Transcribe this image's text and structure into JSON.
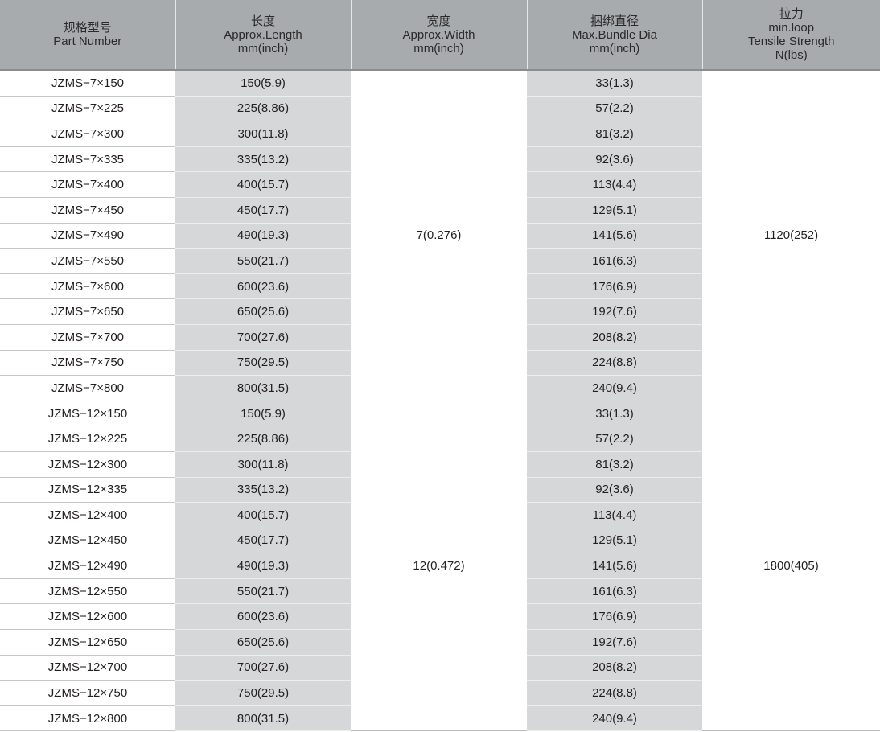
{
  "headers": [
    {
      "cn": "规格型号",
      "en": [
        "Part Number"
      ]
    },
    {
      "cn": "长度",
      "en": [
        "Approx.Length",
        "mm(inch)"
      ]
    },
    {
      "cn": "宽度",
      "en": [
        "Approx.Width",
        "mm(inch)"
      ]
    },
    {
      "cn": "捆绑直径",
      "en": [
        "Max.Bundle Dia",
        "mm(inch)"
      ]
    },
    {
      "cn": "拉力",
      "en": [
        "min.loop",
        "Tensile Strength",
        "N(lbs)"
      ]
    }
  ],
  "groups": [
    {
      "width": "7(0.276)",
      "tensile": "1120(252)",
      "rows": [
        [
          "JZMS−7×150",
          "150(5.9)",
          "33(1.3)"
        ],
        [
          "JZMS−7×225",
          "225(8.86)",
          "57(2.2)"
        ],
        [
          "JZMS−7×300",
          "300(11.8)",
          "81(3.2)"
        ],
        [
          "JZMS−7×335",
          "335(13.2)",
          "92(3.6)"
        ],
        [
          "JZMS−7×400",
          "400(15.7)",
          "113(4.4)"
        ],
        [
          "JZMS−7×450",
          "450(17.7)",
          "129(5.1)"
        ],
        [
          "JZMS−7×490",
          "490(19.3)",
          "141(5.6)"
        ],
        [
          "JZMS−7×550",
          "550(21.7)",
          "161(6.3)"
        ],
        [
          "JZMS−7×600",
          "600(23.6)",
          "176(6.9)"
        ],
        [
          "JZMS−7×650",
          "650(25.6)",
          "192(7.6)"
        ],
        [
          "JZMS−7×700",
          "700(27.6)",
          "208(8.2)"
        ],
        [
          "JZMS−7×750",
          "750(29.5)",
          "224(8.8)"
        ],
        [
          "JZMS−7×800",
          "800(31.5)",
          "240(9.4)"
        ]
      ]
    },
    {
      "width": "12(0.472)",
      "tensile": "1800(405)",
      "rows": [
        [
          "JZMS−12×150",
          "150(5.9)",
          "33(1.3)"
        ],
        [
          "JZMS−12×225",
          "225(8.86)",
          "57(2.2)"
        ],
        [
          "JZMS−12×300",
          "300(11.8)",
          "81(3.2)"
        ],
        [
          "JZMS−12×335",
          "335(13.2)",
          "92(3.6)"
        ],
        [
          "JZMS−12×400",
          "400(15.7)",
          "113(4.4)"
        ],
        [
          "JZMS−12×450",
          "450(17.7)",
          "129(5.1)"
        ],
        [
          "JZMS−12×490",
          "490(19.3)",
          "141(5.6)"
        ],
        [
          "JZMS−12×550",
          "550(21.7)",
          "161(6.3)"
        ],
        [
          "JZMS−12×600",
          "600(23.6)",
          "176(6.9)"
        ],
        [
          "JZMS−12×650",
          "650(25.6)",
          "192(7.6)"
        ],
        [
          "JZMS−12×700",
          "700(27.6)",
          "208(8.2)"
        ],
        [
          "JZMS−12×750",
          "750(29.5)",
          "224(8.8)"
        ],
        [
          "JZMS−12×800",
          "800(31.5)",
          "240(9.4)"
        ]
      ]
    }
  ]
}
